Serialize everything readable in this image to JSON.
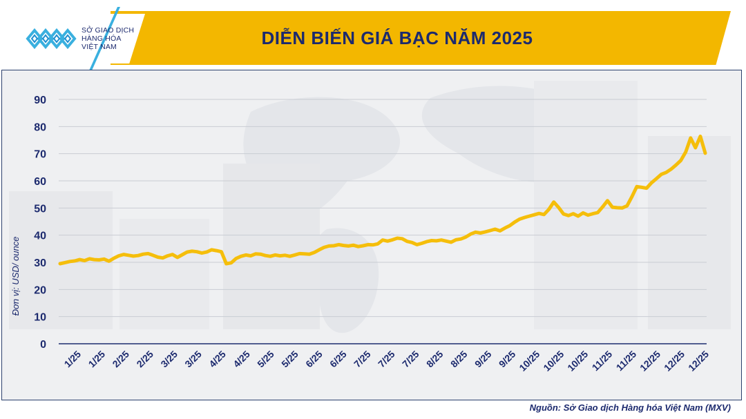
{
  "header": {
    "title": "DIỄN BIẾN GIÁ BẠC NĂM 2025",
    "logo": {
      "icon": "mxv-logo-icon",
      "line1": "SỞ GIAO DỊCH",
      "line2": "HÀNG HÓA",
      "line3": "VIỆT NAM"
    }
  },
  "source": "Nguồn: Sở Giao dịch Hàng hóa Việt Nam (MXV)",
  "colors": {
    "banner": "#f3b700",
    "title": "#1c2a6e",
    "line": "#f5be0b",
    "axis_text": "#1c2a6e"
  },
  "chart_data": {
    "type": "line",
    "ylabel": "Đơn vị: USD/ ounce",
    "ylim": [
      0,
      90
    ],
    "yticks": [
      0,
      10,
      20,
      30,
      40,
      50,
      60,
      70,
      80,
      90
    ],
    "grid": true,
    "xticklabels": [
      "1/25",
      "1/25",
      "2/25",
      "2/25",
      "3/25",
      "3/25",
      "4/25",
      "4/25",
      "5/25",
      "5/25",
      "6/25",
      "6/25",
      "7/25",
      "7/25",
      "7/25",
      "8/25",
      "8/25",
      "9/25",
      "9/25",
      "10/25",
      "10/25",
      "10/25",
      "11/25",
      "11/25",
      "12/25",
      "12/25",
      "12/25"
    ],
    "series": [
      {
        "values": [
          29.5,
          29.9,
          30.3,
          30.5,
          31.0,
          30.6,
          31.3,
          31.0,
          30.9,
          31.2,
          30.4,
          31.5,
          32.4,
          32.9,
          32.6,
          32.3,
          32.5,
          33.0,
          33.2,
          32.6,
          31.9,
          31.6,
          32.4,
          32.9,
          31.8,
          32.8,
          33.8,
          34.1,
          33.9,
          33.4,
          33.8,
          34.6,
          34.3,
          33.9,
          29.5,
          29.8,
          31.4,
          32.2,
          32.7,
          32.4,
          33.1,
          33.0,
          32.5,
          32.2,
          32.7,
          32.4,
          32.6,
          32.2,
          32.7,
          33.2,
          33.1,
          33.0,
          33.6,
          34.6,
          35.5,
          36.0,
          36.1,
          36.5,
          36.2,
          36.0,
          36.3,
          35.8,
          36.1,
          36.5,
          36.4,
          36.8,
          38.2,
          37.8,
          38.3,
          38.9,
          38.7,
          37.7,
          37.3,
          36.5,
          37.0,
          37.6,
          38.0,
          37.9,
          38.2,
          37.8,
          37.4,
          38.3,
          38.6,
          39.3,
          40.4,
          41.1,
          40.8,
          41.2,
          41.7,
          42.2,
          41.6,
          42.6,
          43.5,
          44.8,
          45.9,
          46.5,
          47.0,
          47.5,
          48.0,
          47.6,
          49.5,
          52.2,
          50.2,
          47.8,
          47.2,
          47.9,
          47.0,
          48.2,
          47.4,
          47.9,
          48.3,
          50.4,
          52.7,
          50.3,
          50.1,
          50.0,
          50.8,
          54.2,
          57.9,
          57.6,
          57.3,
          59.3,
          60.8,
          62.4,
          63.1,
          64.3,
          65.8,
          67.5,
          70.6,
          75.8,
          72.2,
          76.4,
          70.2
        ]
      }
    ]
  }
}
